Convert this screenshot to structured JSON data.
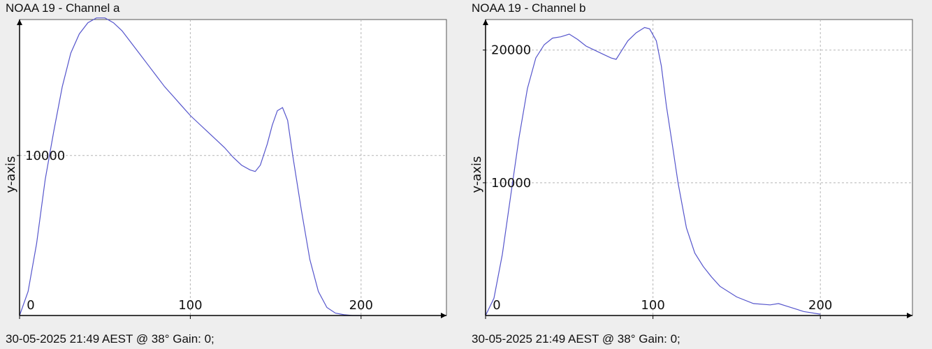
{
  "chart_data": [
    {
      "type": "line",
      "title": "NOAA 19 - Channel a",
      "footer": "30-05-2025 21:49 AEST @ 38° Gain: 0;",
      "ylabel": "y-axis",
      "xlim": [
        0,
        250
      ],
      "ylim": [
        0,
        18500
      ],
      "xticks": [
        {
          "value": 0,
          "label": "0"
        },
        {
          "value": 100,
          "label": "100"
        },
        {
          "value": 200,
          "label": "200"
        }
      ],
      "yticks": [
        {
          "value": 10000,
          "label": "10000"
        }
      ],
      "grid": true,
      "color": "#5555cc",
      "series": [
        {
          "x": [
            0,
            5,
            10,
            15,
            20,
            25,
            30,
            35,
            40,
            45,
            50,
            55,
            60,
            65,
            70,
            75,
            80,
            85,
            90,
            95,
            100,
            105,
            110,
            115,
            120,
            125,
            130,
            135,
            138,
            141,
            145,
            148,
            151,
            154,
            157,
            160,
            165,
            170,
            175,
            180,
            185,
            190,
            195,
            200
          ],
          "y": [
            0,
            1500,
            4500,
            8500,
            11500,
            14300,
            16400,
            17600,
            18300,
            18600,
            18600,
            18300,
            17800,
            17100,
            16400,
            15700,
            15000,
            14300,
            13700,
            13100,
            12500,
            12000,
            11500,
            11000,
            10500,
            9900,
            9400,
            9100,
            9000,
            9400,
            10700,
            11900,
            12800,
            13000,
            12200,
            10000,
            6600,
            3500,
            1500,
            500,
            150,
            50,
            0,
            0
          ]
        }
      ]
    },
    {
      "type": "line",
      "title": "NOAA 19 - Channel b",
      "footer": "30-05-2025 21:49 AEST @ 38° Gain: 0;",
      "ylabel": "y-axis",
      "xlim": [
        0,
        255
      ],
      "ylim": [
        0,
        22300
      ],
      "xticks": [
        {
          "value": 0,
          "label": "0"
        },
        {
          "value": 100,
          "label": "100"
        },
        {
          "value": 200,
          "label": "200"
        }
      ],
      "yticks": [
        {
          "value": 10000,
          "label": "10000"
        },
        {
          "value": 20000,
          "label": "20000"
        }
      ],
      "grid": true,
      "color": "#5555cc",
      "series": [
        {
          "x": [
            0,
            5,
            10,
            15,
            20,
            25,
            30,
            35,
            40,
            45,
            50,
            55,
            60,
            65,
            70,
            75,
            78,
            80,
            85,
            90,
            95,
            98,
            102,
            105,
            108,
            112,
            115,
            120,
            125,
            130,
            135,
            140,
            150,
            160,
            170,
            175,
            180,
            190,
            200
          ],
          "y": [
            0,
            1300,
            4600,
            9000,
            13400,
            17100,
            19400,
            20400,
            20900,
            21000,
            21200,
            20800,
            20300,
            20000,
            19700,
            19400,
            19300,
            19700,
            20700,
            21300,
            21700,
            21600,
            20700,
            18800,
            15800,
            12500,
            10000,
            6600,
            4700,
            3700,
            2900,
            2200,
            1400,
            900,
            800,
            900,
            700,
            300,
            100
          ]
        }
      ]
    }
  ]
}
